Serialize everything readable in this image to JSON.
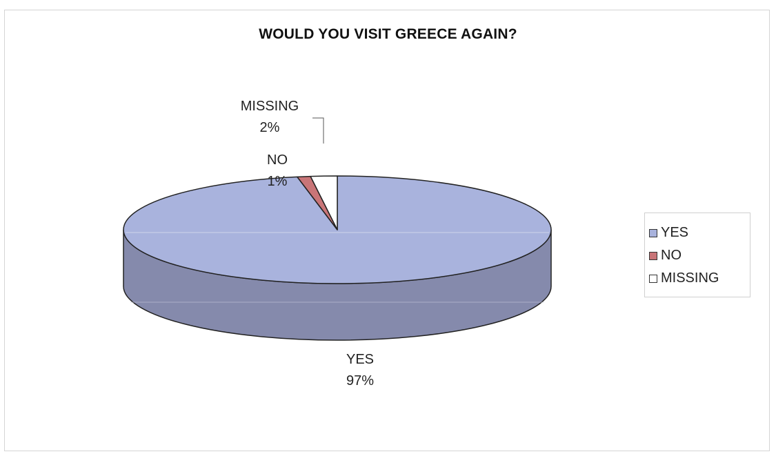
{
  "chart_data": {
    "type": "pie",
    "title": "WOULD YOU VISIT GREECE AGAIN?",
    "three_d": true,
    "legend_position": "right",
    "slices": [
      {
        "label": "YES",
        "value": 97,
        "value_label": "97%",
        "color": "#a9b3dd",
        "side_color": "#858aac"
      },
      {
        "label": "NO",
        "value": 1,
        "value_label": "1%",
        "color": "#c97578",
        "side_color": "#9e5659"
      },
      {
        "label": "MISSING",
        "value": 2,
        "value_label": "2%",
        "color": "#ffffff",
        "side_color": "#dddddd"
      }
    ]
  }
}
